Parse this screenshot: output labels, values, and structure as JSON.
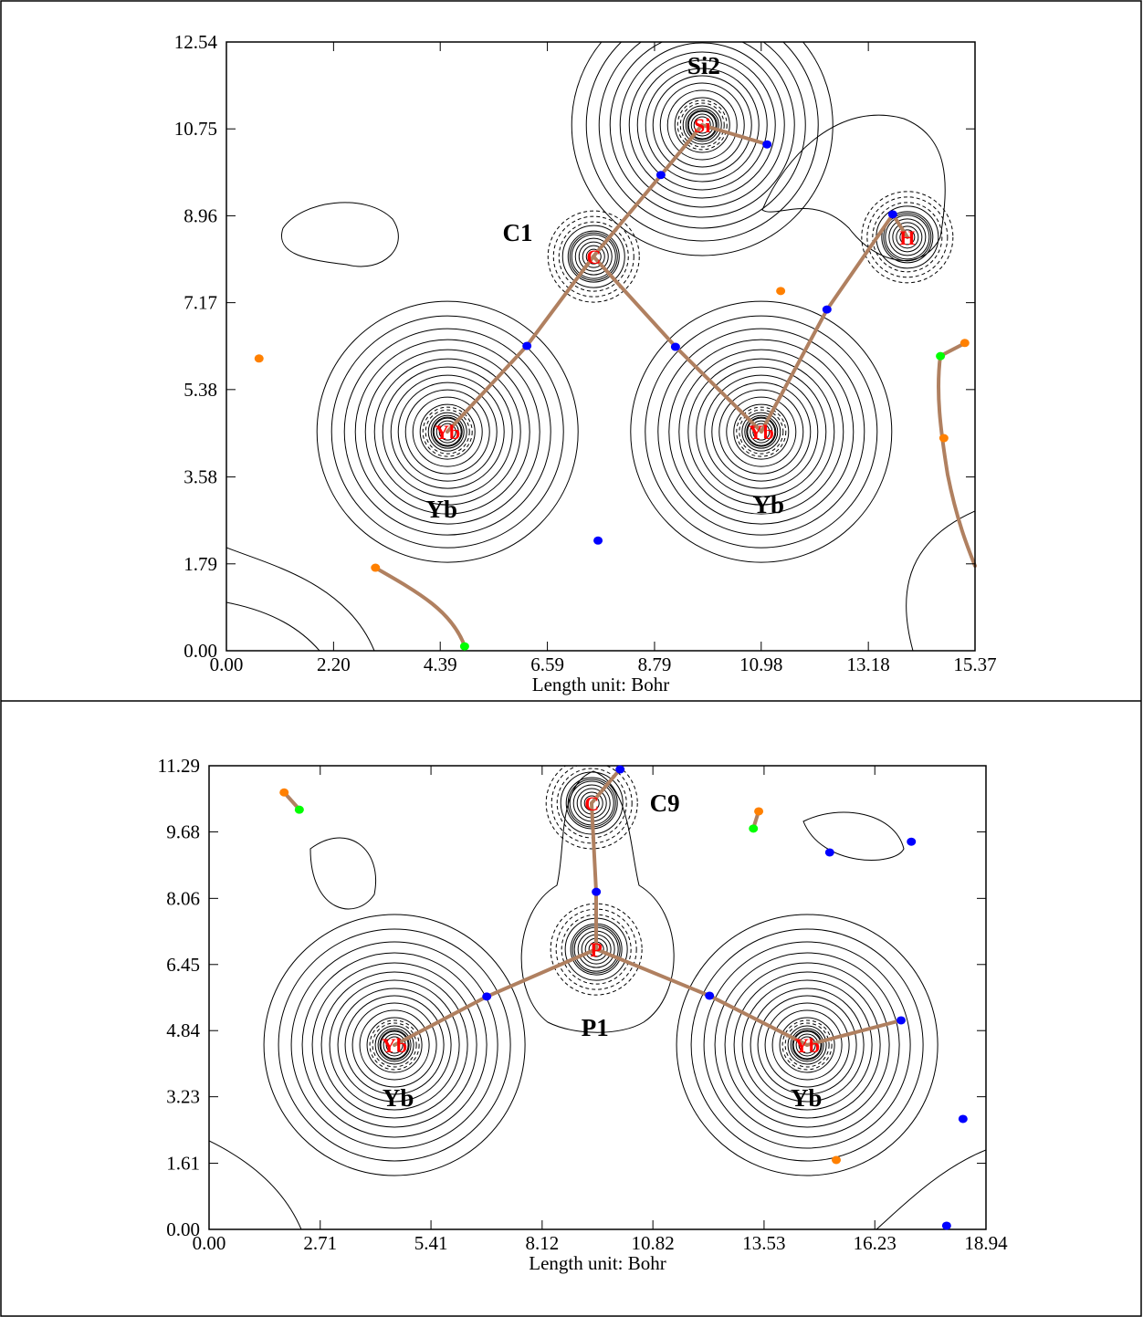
{
  "chart_data": [
    {
      "type": "contour",
      "xlabel": "Length unit: Bohr",
      "xlim": [
        0,
        15.37
      ],
      "ylim": [
        0,
        12.54
      ],
      "xticks": [
        {
          "value": 0,
          "label": "0.00"
        },
        {
          "value": 2.2,
          "label": "2.20"
        },
        4.39,
        6.59,
        8.79,
        10.98,
        13.18,
        15.37
      ],
      "yticks": [
        {
          "value": 0,
          "label": "0.00"
        },
        1.79,
        3.58,
        5.38,
        7.17,
        8.96,
        10.75,
        12.54
      ],
      "atoms": {
        "labels": [
          "Si",
          "C",
          "H",
          "Yb",
          "Yb"
        ],
        "x": [
          9.77,
          7.54,
          13.98,
          4.54,
          10.98
        ],
        "y": [
          10.83,
          8.12,
          8.52,
          4.51,
          4.51
        ]
      },
      "annotations": [
        {
          "text": "Si2",
          "x": 9.8,
          "y": 12.05
        },
        {
          "text": "C1",
          "x": 5.98,
          "y": 8.61
        },
        {
          "text": "Yb",
          "x": 4.42,
          "y": 2.91
        },
        {
          "text": "Yb",
          "x": 11.13,
          "y": 3.01
        }
      ],
      "series": [
        {
          "color": "#0000ff",
          "x": [
            11.1,
            8.92,
            13.68,
            12.33,
            6.17,
            9.22,
            7.63
          ],
          "values": [
            10.43,
            9.8,
            8.99,
            7.03,
            6.28,
            6.26,
            2.27
          ]
        },
        {
          "color": "#ff8000",
          "x": [
            11.38,
            0.67,
            15.16,
            14.73,
            3.06
          ],
          "values": [
            7.41,
            6.02,
            6.34,
            4.38,
            1.71
          ]
        },
        {
          "color": "#00ff00",
          "x": [
            14.66,
            4.89
          ],
          "values": [
            6.07,
            0.09
          ]
        }
      ]
    },
    {
      "type": "contour",
      "xlabel": "Length unit: Bohr",
      "xlim": [
        0,
        18.94
      ],
      "ylim": [
        0,
        11.29
      ],
      "xticks": [
        {
          "value": 0,
          "label": "0.00"
        },
        2.71,
        5.41,
        8.12,
        10.82,
        13.53,
        16.23,
        18.94
      ],
      "yticks": [
        {
          "value": 0,
          "label": "0.00"
        },
        1.61,
        3.23,
        4.84,
        6.45,
        8.06,
        9.68,
        11.29
      ],
      "atoms": {
        "labels": [
          "C",
          "P",
          "Yb",
          "Yb"
        ],
        "x": [
          9.33,
          9.44,
          4.52,
          14.58
        ],
        "y": [
          10.38,
          6.82,
          4.49,
          4.49
        ]
      },
      "annotations": [
        {
          "text": "C9",
          "x": 11.11,
          "y": 10.38
        },
        {
          "text": "P1",
          "x": 9.41,
          "y": 4.91
        },
        {
          "text": "Yb",
          "x": 4.61,
          "y": 3.2
        },
        {
          "text": "Yb",
          "x": 14.56,
          "y": 3.2
        }
      ],
      "series": [
        {
          "color": "#0000ff",
          "x": [
            10.02,
            9.44,
            6.77,
            12.2,
            16.87,
            15.13,
            17.12,
            18.38,
            17.98
          ],
          "values": [
            11.2,
            8.22,
            5.67,
            5.69,
            5.09,
            9.18,
            9.44,
            2.69,
            0.09
          ]
        },
        {
          "color": "#ff8000",
          "x": [
            1.83,
            13.4,
            15.29
          ],
          "values": [
            10.64,
            10.18,
            1.69
          ]
        },
        {
          "color": "#00ff00",
          "x": [
            2.2,
            13.27
          ],
          "values": [
            10.22,
            9.76
          ]
        }
      ]
    }
  ]
}
